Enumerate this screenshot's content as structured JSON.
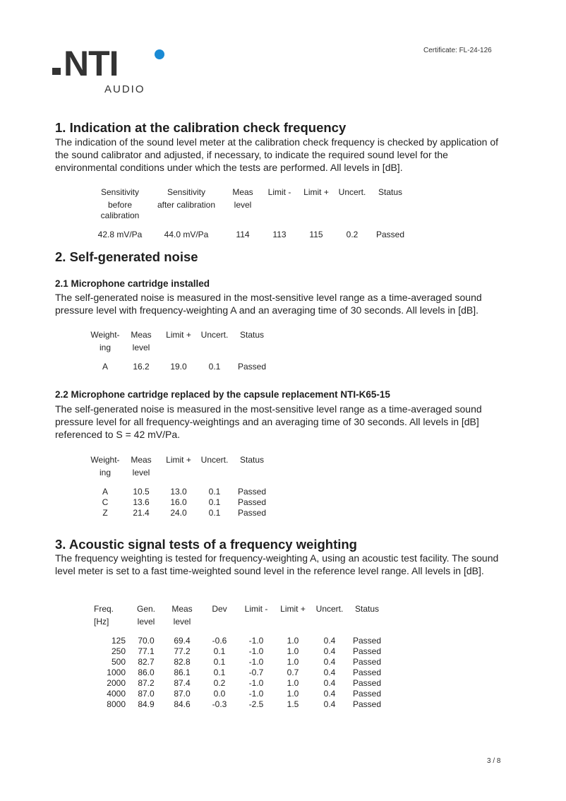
{
  "header": {
    "certificate": "Certificate: FL-24-126",
    "logo_text": ".INTi",
    "logo_subtext": "AUDIO",
    "logo_accent": "#1a8ad4"
  },
  "s1": {
    "title": "1. Indication at the calibration check frequency",
    "text": "The indication of the sound level meter at the calibration check frequency is checked by application of the sound calibrator and adjusted, if necessary, to indicate the required sound level for the environmental conditions under which the tests are performed. All levels in [dB].",
    "table": {
      "headers": [
        [
          "Sensitivity",
          "before calibration"
        ],
        [
          "Sensitivity",
          "after calibration"
        ],
        [
          "Meas",
          "level"
        ],
        [
          "Limit -",
          ""
        ],
        [
          "Limit +",
          ""
        ],
        [
          "Uncert.",
          ""
        ],
        [
          "Status",
          ""
        ]
      ],
      "rows": [
        [
          "42.8 mV/Pa",
          "44.0 mV/Pa",
          "114",
          "113",
          "115",
          "0.2",
          "Passed"
        ]
      ]
    }
  },
  "s2": {
    "title": "2. Self-generated noise",
    "s21": {
      "title": "2.1 Microphone cartridge installed",
      "text": "The self-generated noise is measured in the most-sensitive level range as a time-averaged sound pressure level with frequency-weighting A and an averaging time of 30 seconds. All levels in [dB].",
      "table": {
        "headers": [
          [
            "Weight-",
            "ing"
          ],
          [
            "Meas",
            "level"
          ],
          [
            "Limit +",
            ""
          ],
          [
            "Uncert.",
            ""
          ],
          [
            "Status",
            ""
          ]
        ],
        "rows": [
          [
            "A",
            "16.2",
            "19.0",
            "0.1",
            "Passed"
          ]
        ]
      }
    },
    "s22": {
      "title": "2.2 Microphone cartridge replaced by the capsule replacement NTI-K65-15",
      "text": "The self-generated noise is measured in the most-sensitive level range as a time-averaged sound pressure level for all frequency-weightings and an averaging time of 30 seconds. All levels in [dB] referenced to S = 42 mV/Pa.",
      "table": {
        "headers": [
          [
            "Weight-",
            "ing"
          ],
          [
            "Meas",
            "level"
          ],
          [
            "Limit +",
            ""
          ],
          [
            "Uncert.",
            ""
          ],
          [
            "Status",
            ""
          ]
        ],
        "rows": [
          [
            "A",
            "10.5",
            "13.0",
            "0.1",
            "Passed"
          ],
          [
            "C",
            "13.6",
            "16.0",
            "0.1",
            "Passed"
          ],
          [
            "Z",
            "21.4",
            "24.0",
            "0.1",
            "Passed"
          ]
        ]
      }
    }
  },
  "s3": {
    "title": "3. Acoustic signal tests of a frequency weighting",
    "text": "The frequency weighting is tested for frequency-weighting A, using an acoustic test facility. The sound level meter is set to a fast time-weighted sound level in the reference level range. All levels in [dB].",
    "table": {
      "headers": [
        [
          "Freq.",
          "[Hz]"
        ],
        [
          "Gen.",
          "level"
        ],
        [
          "Meas",
          "level"
        ],
        [
          "Dev",
          ""
        ],
        [
          "Limit -",
          ""
        ],
        [
          "Limit +",
          ""
        ],
        [
          "Uncert.",
          ""
        ],
        [
          "Status",
          ""
        ]
      ],
      "rows": [
        [
          "125",
          "70.0",
          "69.4",
          "-0.6",
          "-1.0",
          "1.0",
          "0.4",
          "Passed"
        ],
        [
          "250",
          "77.1",
          "77.2",
          "0.1",
          "-1.0",
          "1.0",
          "0.4",
          "Passed"
        ],
        [
          "500",
          "82.7",
          "82.8",
          "0.1",
          "-1.0",
          "1.0",
          "0.4",
          "Passed"
        ],
        [
          "1000",
          "86.0",
          "86.1",
          "0.1",
          "-0.7",
          "0.7",
          "0.4",
          "Passed"
        ],
        [
          "2000",
          "87.2",
          "87.4",
          "0.2",
          "-1.0",
          "1.0",
          "0.4",
          "Passed"
        ],
        [
          "4000",
          "87.0",
          "87.0",
          "0.0",
          "-1.0",
          "1.0",
          "0.4",
          "Passed"
        ],
        [
          "8000",
          "84.9",
          "84.6",
          "-0.3",
          "-2.5",
          "1.5",
          "0.4",
          "Passed"
        ]
      ]
    }
  },
  "footer": {
    "page": "3 / 8"
  }
}
